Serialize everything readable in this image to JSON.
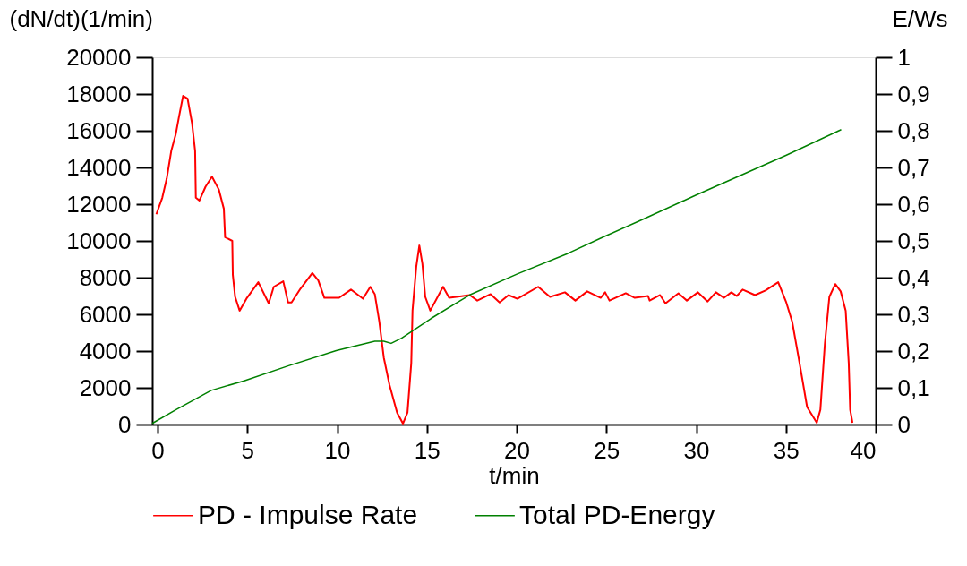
{
  "chart_data": {
    "type": "line",
    "xlabel": "t/min",
    "ylabel": "(dN/dt)(1/min)",
    "y2label": "E/Ws",
    "xlim": [
      -0.3,
      40
    ],
    "xticks": [
      0,
      5,
      10,
      15,
      20,
      25,
      30,
      35,
      40
    ],
    "ylim": [
      0,
      20000
    ],
    "yticks": [
      0,
      2000,
      4000,
      6000,
      8000,
      10000,
      12000,
      14000,
      16000,
      18000,
      20000
    ],
    "y2lim": [
      0,
      1
    ],
    "y2ticks": [
      0,
      {
        "value": 0.1,
        "label": "0,1"
      },
      {
        "value": 0.2,
        "label": "0,2"
      },
      {
        "value": 0.3,
        "label": "0,3"
      },
      {
        "value": 0.4,
        "label": "0,4"
      },
      {
        "value": 0.5,
        "label": "0,5"
      },
      {
        "value": 0.6,
        "label": "0,6"
      },
      {
        "value": 0.7,
        "label": "0,7"
      },
      {
        "value": 0.8,
        "label": "0,8"
      },
      {
        "value": 0.9,
        "label": "0,9"
      },
      1
    ],
    "grid": false,
    "legend": "bottom",
    "marker": "none",
    "line_style": "solid",
    "series": [
      {
        "name": "PD - Impulse Rate",
        "color": "#ff0000",
        "x": [
          -0.07,
          0.26,
          0.51,
          0.76,
          1.01,
          1.18,
          1.42,
          1.67,
          1.92,
          2.09,
          2.13,
          2.33,
          2.67,
          3.03,
          3.41,
          3.69,
          3.76,
          4.16,
          4.19,
          4.32,
          4.57,
          4.98,
          5.61,
          6.19,
          6.47,
          7.0,
          7.27,
          7.46,
          7.96,
          8.62,
          8.95,
          9.29,
          10.11,
          10.77,
          11.44,
          11.85,
          12.1,
          12.35,
          12.6,
          12.92,
          13.34,
          13.67,
          13.92,
          14.13,
          14.2,
          14.41,
          14.58,
          14.75,
          14.91,
          15.19,
          15.9,
          16.24,
          17.39,
          17.81,
          18.55,
          19.05,
          19.55,
          20.04,
          21.2,
          21.86,
          22.69,
          23.27,
          23.93,
          24.68,
          24.93,
          25.17,
          26.08,
          26.58,
          27.32,
          27.41,
          27.99,
          28.29,
          29.01,
          29.48,
          30.1,
          30.64,
          31.1,
          31.55,
          31.96,
          32.26,
          32.59,
          33.28,
          33.86,
          34.57,
          35.02,
          35.35,
          35.76,
          36.18,
          36.72,
          36.92,
          37.17,
          37.42,
          37.75,
          38.05,
          38.33,
          38.5,
          38.58,
          38.71
        ],
        "values": [
          11450,
          12350,
          13400,
          14900,
          15800,
          16700,
          17900,
          17750,
          16400,
          14900,
          12350,
          12200,
          12950,
          13500,
          12800,
          11750,
          10200,
          10000,
          8150,
          6950,
          6200,
          6900,
          7750,
          6600,
          7500,
          7800,
          6650,
          6650,
          7400,
          8250,
          7850,
          6900,
          6900,
          7350,
          6850,
          7500,
          7100,
          5600,
          3650,
          2150,
          650,
          50,
          650,
          3350,
          6200,
          8600,
          9750,
          8750,
          6950,
          6200,
          7500,
          6900,
          7050,
          6750,
          7100,
          6650,
          7050,
          6850,
          7500,
          6950,
          7200,
          6750,
          7250,
          6900,
          7200,
          6750,
          7150,
          6900,
          7000,
          6750,
          7050,
          6600,
          7150,
          6750,
          7200,
          6700,
          7200,
          6900,
          7200,
          7000,
          7350,
          7050,
          7300,
          7750,
          6650,
          5600,
          3350,
          950,
          100,
          800,
          4400,
          6950,
          7650,
          7250,
          6200,
          3350,
          800,
          100
        ]
      },
      {
        "name": "Total PD-Energy",
        "color": "#008000",
        "axis": "y2",
        "x": [
          -0.3,
          1.01,
          2.99,
          4.82,
          7.3,
          9.95,
          12.1,
          12.6,
          13.01,
          13.59,
          15.24,
          17.39,
          20.04,
          22.86,
          24.84,
          26.91,
          30.0,
          35.0,
          38.08
        ],
        "values": [
          0.003,
          0.04,
          0.093,
          0.119,
          0.16,
          0.201,
          0.227,
          0.227,
          0.221,
          0.235,
          0.289,
          0.353,
          0.41,
          0.466,
          0.511,
          0.556,
          0.625,
          0.733,
          0.803
        ]
      }
    ]
  }
}
